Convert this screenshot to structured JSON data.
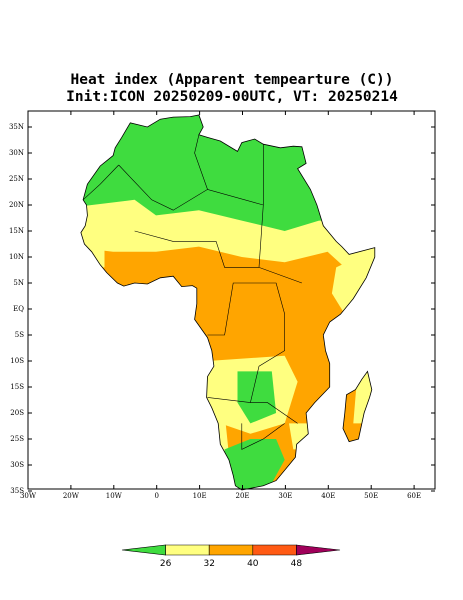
{
  "title": "Heat index (Apparent tempearture (C))",
  "subtitle": "Init:ICON 20250209-00UTC, VT: 20250214",
  "map": {
    "lat_labels": [
      "35N",
      "30N",
      "25N",
      "20N",
      "15N",
      "10N",
      "5N",
      "EQ",
      "5S",
      "10S",
      "15S",
      "20S",
      "25S",
      "30S",
      "35S"
    ],
    "lon_labels": [
      "30W",
      "20W",
      "10W",
      "0",
      "10E",
      "20E",
      "30E",
      "40E",
      "50E",
      "60E"
    ]
  },
  "colorbar": {
    "labels": [
      "26",
      "32",
      "40",
      "48"
    ],
    "colors": [
      "#3fdc3f",
      "#ffff80",
      "#ffa500",
      "#ff5a14",
      "#a0005a"
    ]
  }
}
